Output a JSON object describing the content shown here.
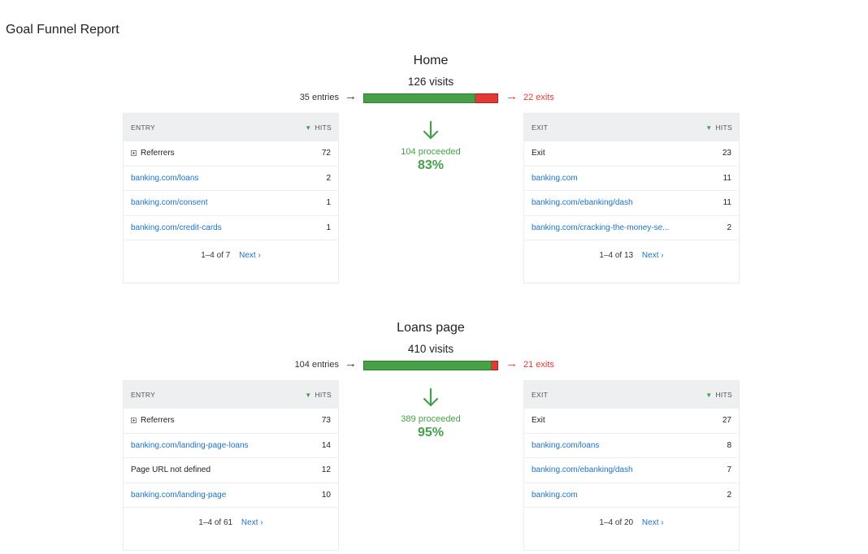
{
  "report": {
    "title": "Goal Funnel Report"
  },
  "steps": [
    {
      "name": "Home",
      "visits": "126 visits",
      "entries": "35 entries",
      "exits": "22 exits",
      "proceeded": "104 proceeded",
      "percent": "83%",
      "proceed_fraction": 0.83,
      "colors": {
        "proceed": "#46a047",
        "exit": "#e53935"
      },
      "entry_panel": {
        "header": "ENTRY",
        "hits_header": "HITS",
        "rows": [
          {
            "label": "Referrers",
            "hits": "72",
            "type": "group"
          },
          {
            "label": "banking.com/loans",
            "hits": "2",
            "type": "link"
          },
          {
            "label": "banking.com/consent",
            "hits": "1",
            "type": "link"
          },
          {
            "label": "banking.com/credit-cards",
            "hits": "1",
            "type": "link"
          }
        ],
        "pager": {
          "range": "1–4 of 7",
          "next": "Next ›"
        }
      },
      "exit_panel": {
        "header": "EXIT",
        "hits_header": "HITS",
        "rows": [
          {
            "label": "Exit",
            "hits": "23",
            "type": "text"
          },
          {
            "label": "banking.com",
            "hits": "11",
            "type": "link"
          },
          {
            "label": "banking.com/ebanking/dash",
            "hits": "11",
            "type": "link"
          },
          {
            "label": "banking.com/cracking-the-money-se...",
            "hits": "2",
            "type": "link"
          }
        ],
        "pager": {
          "range": "1–4 of 13",
          "next": "Next ›"
        }
      }
    },
    {
      "name": "Loans page",
      "visits": "410 visits",
      "entries": "104 entries",
      "exits": "21 exits",
      "proceeded": "389 proceeded",
      "percent": "95%",
      "proceed_fraction": 0.95,
      "colors": {
        "proceed": "#46a047",
        "exit": "#e53935"
      },
      "entry_panel": {
        "header": "ENTRY",
        "hits_header": "HITS",
        "rows": [
          {
            "label": "Referrers",
            "hits": "73",
            "type": "group"
          },
          {
            "label": "banking.com/landing-page-loans",
            "hits": "14",
            "type": "link"
          },
          {
            "label": "Page URL not defined",
            "hits": "12",
            "type": "text"
          },
          {
            "label": "banking.com/landing-page",
            "hits": "10",
            "type": "link"
          }
        ],
        "pager": {
          "range": "1–4 of 61",
          "next": "Next ›"
        }
      },
      "exit_panel": {
        "header": "EXIT",
        "hits_header": "HITS",
        "rows": [
          {
            "label": "Exit",
            "hits": "27",
            "type": "text"
          },
          {
            "label": "banking.com/loans",
            "hits": "8",
            "type": "link"
          },
          {
            "label": "banking.com/ebanking/dash",
            "hits": "7",
            "type": "link"
          },
          {
            "label": "banking.com",
            "hits": "2",
            "type": "link"
          }
        ],
        "pager": {
          "range": "1–4 of 20",
          "next": "Next ›"
        }
      }
    }
  ],
  "icons": {
    "entry_arrow": "arrow-right-icon",
    "exit_arrow": "arrow-right-icon",
    "proceed_arrow": "arrow-down-icon",
    "sort": "sort-descending-icon",
    "expand": "expand-plus-icon"
  }
}
